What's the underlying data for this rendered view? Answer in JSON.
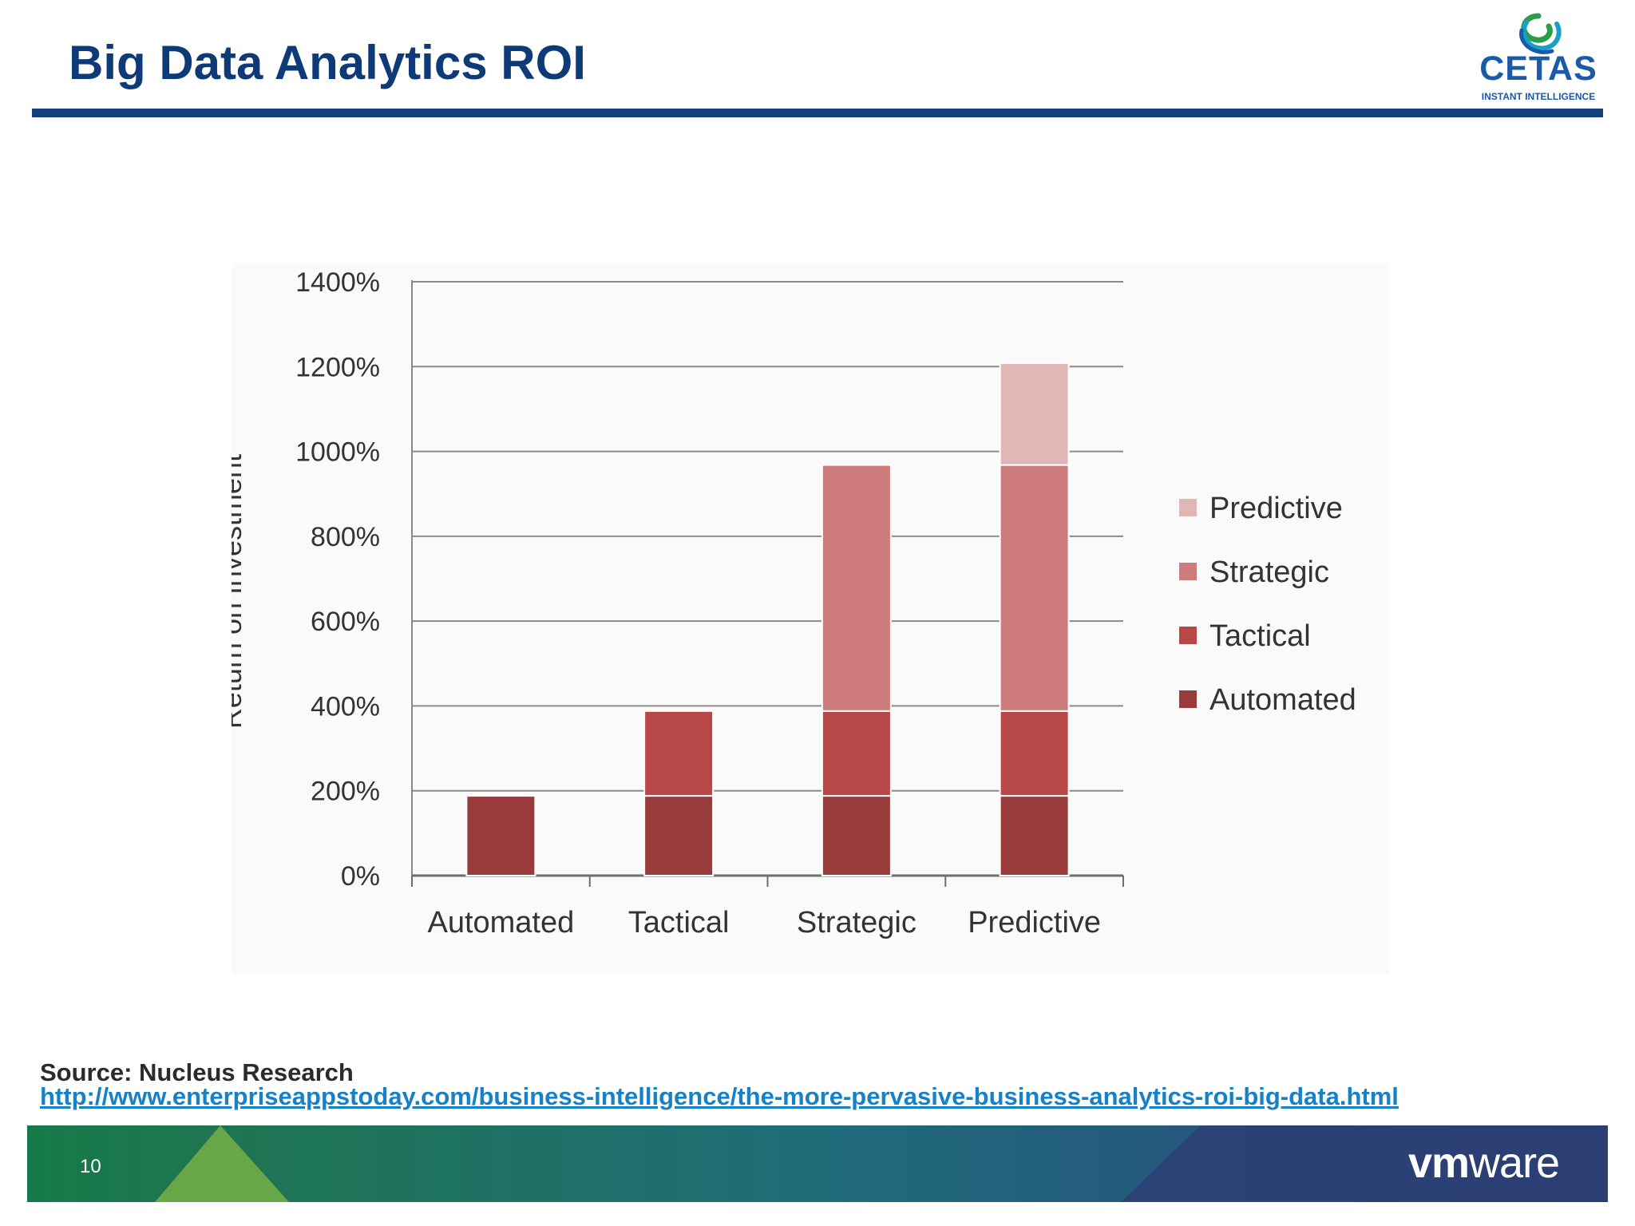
{
  "slide": {
    "title": "Big Data Analytics ROI",
    "page_number": "10"
  },
  "logo": {
    "name": "CETAS",
    "tagline": "INSTANT INTELLIGENCE"
  },
  "source": {
    "label": "Source: Nucleus Research",
    "url": "http://www.enterpriseappstoday.com/business-intelligence/the-more-pervasive-business-analytics-roi-big-data.html"
  },
  "footer": {
    "logo_bold": "vm",
    "logo_regular": "ware"
  },
  "colors": {
    "title": "#0e3b78",
    "link": "#1681c6",
    "automated": "#993b3b",
    "tactical": "#b84848",
    "strategic": "#cd7b7b",
    "predictive": "#e1b6b6"
  },
  "chart_data": {
    "type": "bar",
    "stacked": true,
    "categories": [
      "Automated",
      "Tactical",
      "Strategic",
      "Predictive"
    ],
    "series": [
      {
        "name": "Automated",
        "values": [
          188,
          188,
          188,
          188
        ],
        "color": "#993b3b"
      },
      {
        "name": "Tactical",
        "values": [
          0,
          200,
          200,
          200
        ],
        "color": "#b84848"
      },
      {
        "name": "Strategic",
        "values": [
          0,
          0,
          580,
          580
        ],
        "color": "#cd7b7b"
      },
      {
        "name": "Predictive",
        "values": [
          0,
          0,
          0,
          240
        ],
        "color": "#e1b6b6"
      }
    ],
    "title": "",
    "xlabel": "",
    "ylabel": "Return on Investment",
    "ylim": [
      0,
      1400
    ],
    "yticks": [
      "0%",
      "200%",
      "400%",
      "600%",
      "800%",
      "1000%",
      "1200%",
      "1400%"
    ],
    "grid": true,
    "legend": [
      "Predictive",
      "Strategic",
      "Tactical",
      "Automated"
    ],
    "legend_position": "right"
  }
}
